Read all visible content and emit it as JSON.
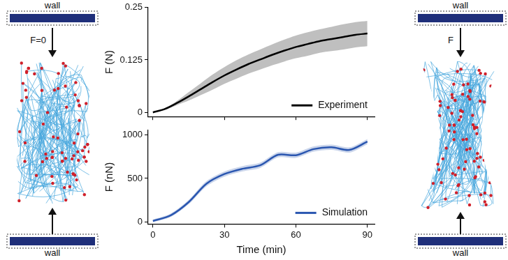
{
  "chart_data": [
    {
      "type": "line",
      "ylabel": "F (N)",
      "x": [
        0,
        5,
        10,
        15,
        20,
        25,
        30,
        35,
        40,
        45,
        50,
        55,
        60,
        65,
        70,
        75,
        80,
        85,
        90
      ],
      "series": [
        {
          "name": "Experiment",
          "color": "#000000",
          "values": [
            0,
            0.008,
            0.022,
            0.038,
            0.055,
            0.072,
            0.088,
            0.102,
            0.115,
            0.126,
            0.137,
            0.147,
            0.156,
            0.163,
            0.17,
            0.175,
            0.18,
            0.185,
            0.188
          ],
          "error": [
            0,
            0.002,
            0.005,
            0.01,
            0.014,
            0.018,
            0.02,
            0.022,
            0.023,
            0.024,
            0.025,
            0.026,
            0.027,
            0.028,
            0.028,
            0.029,
            0.03,
            0.03,
            0.03
          ]
        }
      ],
      "xlim": [
        -2,
        93
      ],
      "xticks": [
        0,
        30,
        60,
        90
      ],
      "ylim": [
        -0.01,
        0.25
      ],
      "yticks": [
        0,
        0.125,
        0.25
      ],
      "tick_labels": "y",
      "legend": "lower right",
      "grid": false
    },
    {
      "type": "line",
      "xlabel": "Time (min)",
      "ylabel": "F (nN)",
      "x": [
        0,
        7.5,
        15,
        22.5,
        30,
        37.5,
        45,
        52.5,
        60,
        67.5,
        75,
        82.5,
        90
      ],
      "series": [
        {
          "name": "Simulation",
          "color": "#2a56b0",
          "values": [
            15,
            80,
            230,
            440,
            550,
            610,
            650,
            770,
            765,
            835,
            855,
            825,
            920
          ],
          "error": [
            15,
            20,
            25,
            30,
            30,
            30,
            30,
            30,
            30,
            30,
            30,
            30,
            30
          ]
        }
      ],
      "xlim": [
        -2,
        93
      ],
      "xticks": [
        0,
        30,
        60,
        90
      ],
      "ylim": [
        -20,
        1050
      ],
      "yticks": [
        0,
        500,
        1000
      ],
      "legend": "lower right",
      "grid": false
    }
  ],
  "diagram": {
    "left_panel": {
      "top_wall": "wall",
      "bottom_wall": "wall",
      "force": "F=0"
    },
    "right_panel": {
      "top_wall": "wall",
      "bottom_wall": "wall",
      "force": "F"
    }
  }
}
